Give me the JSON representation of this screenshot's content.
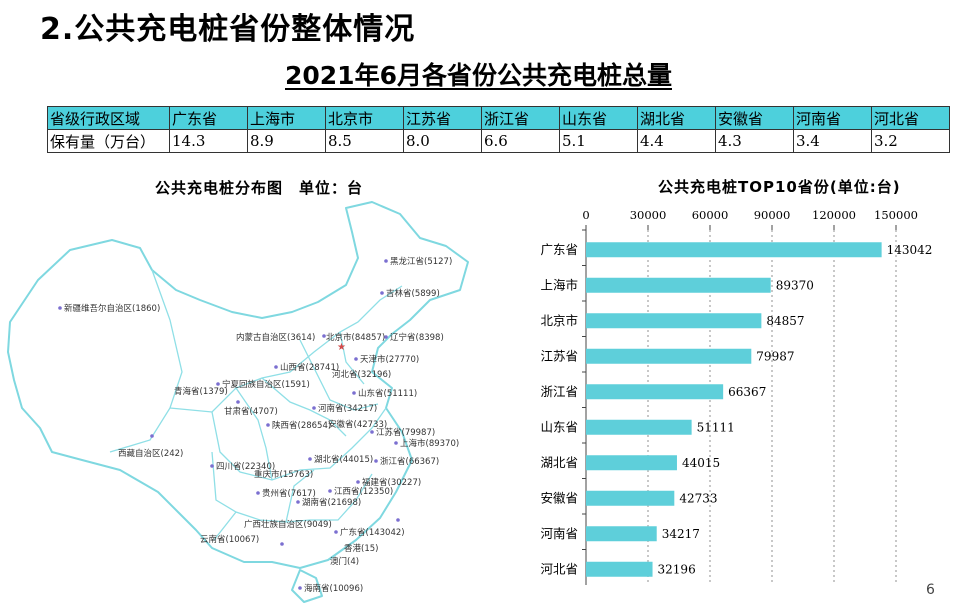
{
  "section_title": "2.公共充电桩省份整体情况",
  "main_title": "2021年6月各省份公共充电桩总量",
  "table": {
    "header": [
      "省级行政区域",
      "广东省",
      "上海市",
      "北京市",
      "江苏省",
      "浙江省",
      "山东省",
      "湖北省",
      "安徽省",
      "河南省",
      "河北省"
    ],
    "row": [
      "保有量（万台）",
      "14.3",
      "8.9",
      "8.5",
      "8.0",
      "6.6",
      "5.1",
      "4.4",
      "4.3",
      "3.4",
      "3.2"
    ]
  },
  "map": {
    "title": "公共充电桩分布图　单位：台",
    "labels": [
      "黑龙江省(5127)",
      "吉林省(5899)",
      "新疆维吾尔自治区(1860)",
      "内蒙古自治区(3614)",
      "北京市(84857)",
      "辽宁省(8398)",
      "天津市(27770)",
      "山西省(28741)",
      "河北省(32196)",
      "宁夏回族自治区(1591)",
      "青海省(1379)",
      "山东省(51111)",
      "甘肃省(4707)",
      "河南省(34217)",
      "陕西省(28654)",
      "安徽省(42733)",
      "江苏省(79987)",
      "上海市(89370)",
      "西藏自治区(242)",
      "湖北省(44015)",
      "浙江省(66367)",
      "四川省(22340)",
      "重庆市(15763)",
      "福建省(30227)",
      "贵州省(7617)",
      "江西省(12350)",
      "湖南省(21698)",
      "广西壮族自治区(9049)",
      "广东省(143042)",
      "云南省(10067)",
      "香港(15)",
      "澳门(4)",
      "海南省(10096)"
    ]
  },
  "bar_chart_title": "公共充电桩TOP10省份(单位:台)",
  "chart_data": {
    "type": "bar",
    "orientation": "horizontal",
    "title": "公共充电桩TOP10省份(单位:台)",
    "categories": [
      "广东省",
      "上海市",
      "北京市",
      "江苏省",
      "浙江省",
      "山东省",
      "湖北省",
      "安徽省",
      "河南省",
      "河北省"
    ],
    "values": [
      143042,
      89370,
      84857,
      79987,
      66367,
      51111,
      44015,
      42733,
      34217,
      32196
    ],
    "xlim": [
      0,
      150000
    ],
    "xticks": [
      "0",
      "30000",
      "60000",
      "90000",
      "120000",
      "150000"
    ],
    "axis_position": "top",
    "grid": true,
    "bar_color": "#5ecfda"
  },
  "page_number": "6"
}
